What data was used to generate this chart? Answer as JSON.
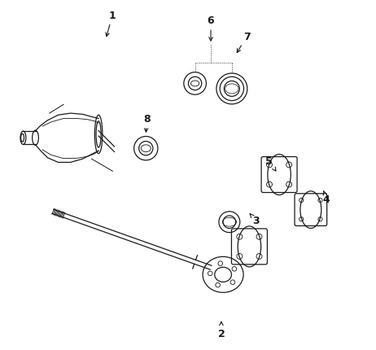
{
  "bg_color": "#ffffff",
  "line_color": "#1a1a1a",
  "parts_labels": {
    "1": [
      0.285,
      0.945,
      0.265,
      0.875
    ],
    "2": [
      0.595,
      0.055,
      0.595,
      0.095
    ],
    "3": [
      0.68,
      0.38,
      0.66,
      0.415
    ],
    "4": [
      0.88,
      0.435,
      0.855,
      0.46
    ],
    "5": [
      0.72,
      0.535,
      0.7,
      0.565
    ],
    "6": [
      0.565,
      0.945,
      0.565,
      0.88
    ],
    "7": [
      0.655,
      0.89,
      0.64,
      0.835
    ],
    "8": [
      0.38,
      0.665,
      0.375,
      0.615
    ]
  }
}
